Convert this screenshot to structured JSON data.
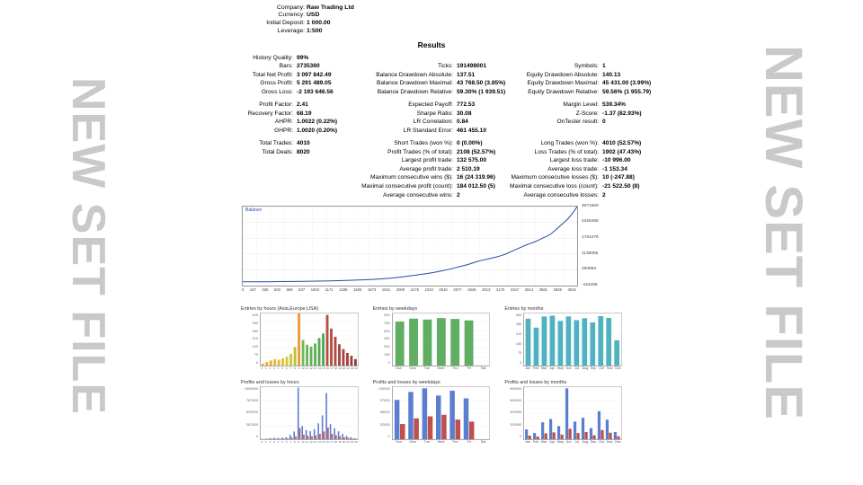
{
  "watermark": "NEW SET FILE",
  "account": {
    "rows": [
      [
        "Company:",
        "Raw Trading Ltd"
      ],
      [
        "Currency:",
        "USD"
      ],
      [
        "Initial Deposit:",
        "1 000.00"
      ],
      [
        "Leverage:",
        "1:500"
      ]
    ]
  },
  "results_title": "Results",
  "stats": {
    "rows": [
      [
        "History Quality:",
        "99%",
        "",
        "",
        "",
        ""
      ],
      [
        "Bars:",
        "2735360",
        "Ticks:",
        "191498001",
        "Symbols:",
        "1"
      ],
      [
        "Total Net Profit:",
        "3 097 842.49",
        "Balance Drawdown Absolute:",
        "137.51",
        "Equity Drawdown Absolute:",
        "140.13"
      ],
      [
        "Gross Profit:",
        "5 291 489.05",
        "Balance Drawdown Maximal:",
        "43 768.50 (3.85%)",
        "Equity Drawdown Maximal:",
        "45 431.00 (3.99%)"
      ],
      [
        "Gross Loss:",
        "-2 193 646.56",
        "Balance Drawdown Relative:",
        "59.30% (1 939.51)",
        "Equity Drawdown Relative:",
        "59.56% (1 955.79)"
      ],
      null,
      [
        "Profit Factor:",
        "2.41",
        "Expected Payoff:",
        "772.53",
        "Margin Level:",
        "539.34%"
      ],
      [
        "Recovery Factor:",
        "68.19",
        "Sharpe Ratio:",
        "30.08",
        "Z-Score:",
        "-1.37 (82.93%)"
      ],
      [
        "AHPR:",
        "1.0022 (0.22%)",
        "LR Correlation:",
        "0.84",
        "OnTester result:",
        "0"
      ],
      [
        "GHPR:",
        "1.0020 (0.20%)",
        "LR Standard Error:",
        "461 455.10",
        "",
        ""
      ],
      null,
      [
        "Total Trades:",
        "4010",
        "Short Trades (won %):",
        "0 (0.00%)",
        "Long Trades (won %):",
        "4010 (52.57%)"
      ],
      [
        "Total Deals:",
        "8020",
        "Profit Trades (% of total):",
        "2108 (52.57%)",
        "Loss Trades (% of total):",
        "1902 (47.43%)"
      ],
      [
        "",
        "",
        "Largest profit trade:",
        "132 575.00",
        "Largest loss trade:",
        "-10 996.00"
      ],
      [
        "",
        "",
        "Average profit trade:",
        "2 510.19",
        "Average loss trade:",
        "-1 153.34"
      ],
      [
        "",
        "",
        "Maximum consecutive wins ($):",
        "16 (24 319.96)",
        "Maximum consecutive losses ($):",
        "10 (-247.88)"
      ],
      [
        "",
        "",
        "Maximal consecutive profit (count):",
        "184 012.50 (5)",
        "Maximal consecutive loss (count):",
        "-21 522.50 (8)"
      ],
      [
        "",
        "",
        "Average consecutive wins:",
        "2",
        "Average consecutive losses:",
        "2"
      ]
    ]
  },
  "chart_data": [
    {
      "type": "line",
      "title": "Balance",
      "xmin": 0,
      "xmax": 4015,
      "ymin": -154299,
      "ymax": 3071660,
      "line_color": "#2a47a8",
      "y_ticks": [
        "3071660",
        "2426468",
        "1781276",
        "1136085",
        "490893",
        "-154299"
      ],
      "x_ticks": [
        "0",
        "167",
        "335",
        "502",
        "669",
        "837",
        "1004",
        "1171",
        "1339",
        "1506",
        "1673",
        "1841",
        "2008",
        "2175",
        "2343",
        "2510",
        "2677",
        "2845",
        "3012",
        "3179",
        "3347",
        "3514",
        "3681",
        "3849",
        "4015"
      ],
      "points": [
        [
          0,
          1000
        ],
        [
          150,
          2500
        ],
        [
          300,
          5000
        ],
        [
          450,
          9000
        ],
        [
          600,
          14000
        ],
        [
          750,
          20000
        ],
        [
          900,
          28000
        ],
        [
          1050,
          38000
        ],
        [
          1200,
          52000
        ],
        [
          1350,
          68000
        ],
        [
          1500,
          88000
        ],
        [
          1600,
          105000
        ],
        [
          1700,
          128000
        ],
        [
          1800,
          158000
        ],
        [
          1900,
          195000
        ],
        [
          2000,
          238000
        ],
        [
          2100,
          285000
        ],
        [
          2200,
          335000
        ],
        [
          2300,
          390000
        ],
        [
          2400,
          455000
        ],
        [
          2500,
          530000
        ],
        [
          2600,
          615000
        ],
        [
          2700,
          705000
        ],
        [
          2750,
          760000
        ],
        [
          2800,
          815000
        ],
        [
          2850,
          860000
        ],
        [
          2900,
          902000
        ],
        [
          2950,
          940000
        ],
        [
          3000,
          978000
        ],
        [
          3050,
          1020000
        ],
        [
          3100,
          1065000
        ],
        [
          3150,
          1125000
        ],
        [
          3200,
          1200000
        ],
        [
          3250,
          1278000
        ],
        [
          3300,
          1352000
        ],
        [
          3350,
          1425000
        ],
        [
          3400,
          1500000
        ],
        [
          3450,
          1562000
        ],
        [
          3500,
          1625000
        ],
        [
          3550,
          1702000
        ],
        [
          3600,
          1782000
        ],
        [
          3650,
          1858000
        ],
        [
          3700,
          1952000
        ],
        [
          3750,
          2098000
        ],
        [
          3800,
          2252000
        ],
        [
          3850,
          2405000
        ],
        [
          3900,
          2556000
        ],
        [
          3950,
          2752000
        ],
        [
          3990,
          2950000
        ],
        [
          4015,
          3071660
        ]
      ]
    },
    {
      "type": "bar",
      "title": "Entries by hours (Asia,Europe,USA)",
      "ymax": 420,
      "y_ticks": [
        "420",
        "350",
        "280",
        "210",
        "140",
        "70",
        "0"
      ],
      "x_labels": [
        "0",
        "1",
        "2",
        "3",
        "4",
        "5",
        "6",
        "7",
        "8",
        "9",
        "10",
        "11",
        "12",
        "13",
        "14",
        "15",
        "16",
        "17",
        "18",
        "19",
        "20",
        "21",
        "22",
        "23"
      ],
      "values": [
        15,
        28,
        40,
        52,
        47,
        58,
        70,
        95,
        150,
        420,
        205,
        168,
        152,
        178,
        222,
        258,
        408,
        298,
        232,
        172,
        132,
        102,
        78,
        52
      ],
      "bar_colors": [
        "#eda33a",
        "#eda33a",
        "#edaa3a",
        "#edb53a",
        "#e6bc38",
        "#e0c23a",
        "#d8c832",
        "#c9c832",
        "#b8c23a",
        "#ef9a2e",
        "#74b65c",
        "#6ab45a",
        "#62b158",
        "#5cae56",
        "#55ab54",
        "#4fa852",
        "#b44f48",
        "#b04c46",
        "#ad4a44",
        "#a84741",
        "#a3443e",
        "#9e413b",
        "#993e38",
        "#943b35"
      ]
    },
    {
      "type": "bar",
      "title": "Entries by weekdays",
      "ymax": 900,
      "y_ticks": [
        "900",
        "750",
        "600",
        "450",
        "300",
        "150",
        "0"
      ],
      "x_labels": [
        "Sun",
        "Mon",
        "Tue",
        "Wed",
        "Thu",
        "Fri",
        "Sat"
      ],
      "values": [
        760,
        810,
        795,
        820,
        805,
        780,
        0
      ],
      "bar_color": "#5fae61"
    },
    {
      "type": "bar",
      "title": "Entries by months",
      "ymax": 350,
      "y_ticks": [
        "350",
        "280",
        "210",
        "140",
        "70",
        "0"
      ],
      "x_labels": [
        "Jan",
        "Feb",
        "Mar",
        "Apr",
        "May",
        "Jun",
        "Jul",
        "Aug",
        "Sep",
        "Oct",
        "Nov",
        "Dec"
      ],
      "values": [
        315,
        255,
        330,
        335,
        300,
        330,
        305,
        318,
        290,
        332,
        320,
        170
      ],
      "bar_color": "#4fb3bf"
    },
    {
      "type": "bar",
      "title": "Profits and losses by hours",
      "ymax": 1050000,
      "y_ticks": [
        "1050000",
        "787500",
        "525000",
        "262500",
        "0"
      ],
      "x_labels": [
        "0",
        "1",
        "2",
        "3",
        "4",
        "5",
        "6",
        "7",
        "8",
        "9",
        "10",
        "11",
        "12",
        "13",
        "14",
        "15",
        "16",
        "17",
        "18",
        "19",
        "20",
        "21",
        "22",
        "23"
      ],
      "series": [
        {
          "name": "profit",
          "color": "#5b7fd0",
          "values": [
            5000,
            12000,
            20000,
            28000,
            25000,
            33000,
            42000,
            88000,
            155000,
            1040000,
            265000,
            185000,
            162000,
            205000,
            320000,
            480000,
            930000,
            305000,
            222000,
            158000,
            108000,
            68000,
            42000,
            20000
          ]
        },
        {
          "name": "loss",
          "color": "#c0504d",
          "values": [
            2000,
            5000,
            8000,
            11000,
            10000,
            13000,
            17000,
            34000,
            58000,
            225000,
            92000,
            68000,
            60000,
            76000,
            108000,
            155000,
            235000,
            108000,
            82000,
            58000,
            40000,
            26000,
            16000,
            8000
          ]
        }
      ]
    },
    {
      "type": "bar",
      "title": "Profits and losses by weekdays",
      "ymax": 130000,
      "y_ticks": [
        "130000",
        "97500",
        "65000",
        "32500",
        "0"
      ],
      "x_labels": [
        "Sun",
        "Mon",
        "Tue",
        "Wed",
        "Thu",
        "Fri",
        "Sat"
      ],
      "series": [
        {
          "name": "profit",
          "color": "#5b7fd0",
          "values": [
            98000,
            118000,
            127000,
            109000,
            121000,
            102000,
            0
          ]
        },
        {
          "name": "loss",
          "color": "#c0504d",
          "values": [
            38000,
            52000,
            57000,
            61000,
            49000,
            44000,
            0
          ]
        }
      ]
    },
    {
      "type": "bar",
      "title": "Profits and losses by months",
      "ymax": 800000,
      "y_ticks": [
        "800000",
        "600000",
        "400000",
        "200000",
        "0"
      ],
      "x_labels": [
        "Jan",
        "Feb",
        "Mar",
        "Apr",
        "May",
        "Jun",
        "Jul",
        "Aug",
        "Sep",
        "Oct",
        "Nov",
        "Dec"
      ],
      "series": [
        {
          "name": "profit",
          "color": "#5b7fd0",
          "values": [
            150000,
            95000,
            260000,
            310000,
            200000,
            780000,
            270000,
            330000,
            170000,
            430000,
            300000,
            110000
          ]
        },
        {
          "name": "loss",
          "color": "#c0504d",
          "values": [
            55000,
            40000,
            90000,
            105000,
            70000,
            160000,
            95000,
            110000,
            60000,
            140000,
            100000,
            45000
          ]
        }
      ]
    }
  ]
}
